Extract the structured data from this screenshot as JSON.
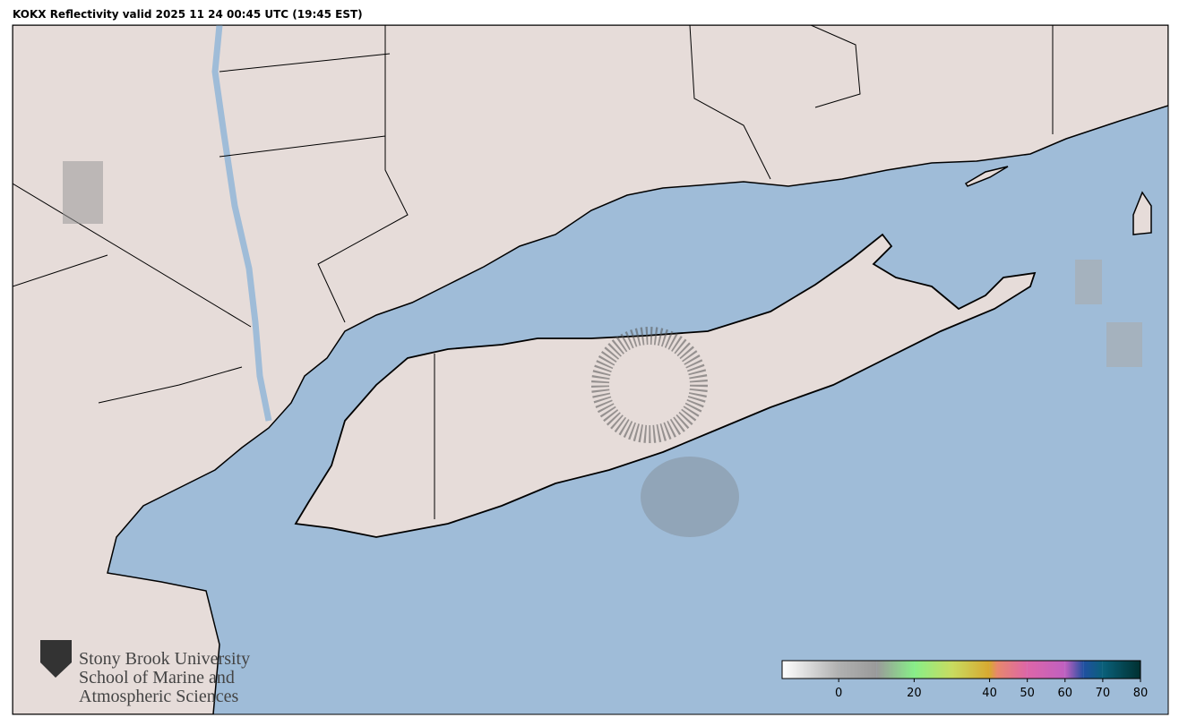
{
  "title": "KOKX Reflectivity valid 2025 11 24 00:45 UTC (19:45 EST)",
  "logo": {
    "line1": "Stony Brook University",
    "line2": "School of Marine and",
    "line3": "Atmospheric Sciences"
  },
  "colorbar": {
    "range": [
      -15,
      80
    ],
    "ticks": [
      0,
      20,
      40,
      50,
      60,
      70,
      80
    ],
    "stops": [
      {
        "value": -15,
        "color": "#ffffff"
      },
      {
        "value": 0,
        "color": "#b0b0b0"
      },
      {
        "value": 10,
        "color": "#9a9a9a"
      },
      {
        "value": 20,
        "color": "#88ee88"
      },
      {
        "value": 30,
        "color": "#c8dc60"
      },
      {
        "value": 40,
        "color": "#d8a830"
      },
      {
        "value": 42,
        "color": "#e8886c"
      },
      {
        "value": 50,
        "color": "#dd66a8"
      },
      {
        "value": 60,
        "color": "#c060c0"
      },
      {
        "value": 65,
        "color": "#2050a0"
      },
      {
        "value": 70,
        "color": "#0a607a"
      },
      {
        "value": 80,
        "color": "#003030"
      }
    ]
  }
}
